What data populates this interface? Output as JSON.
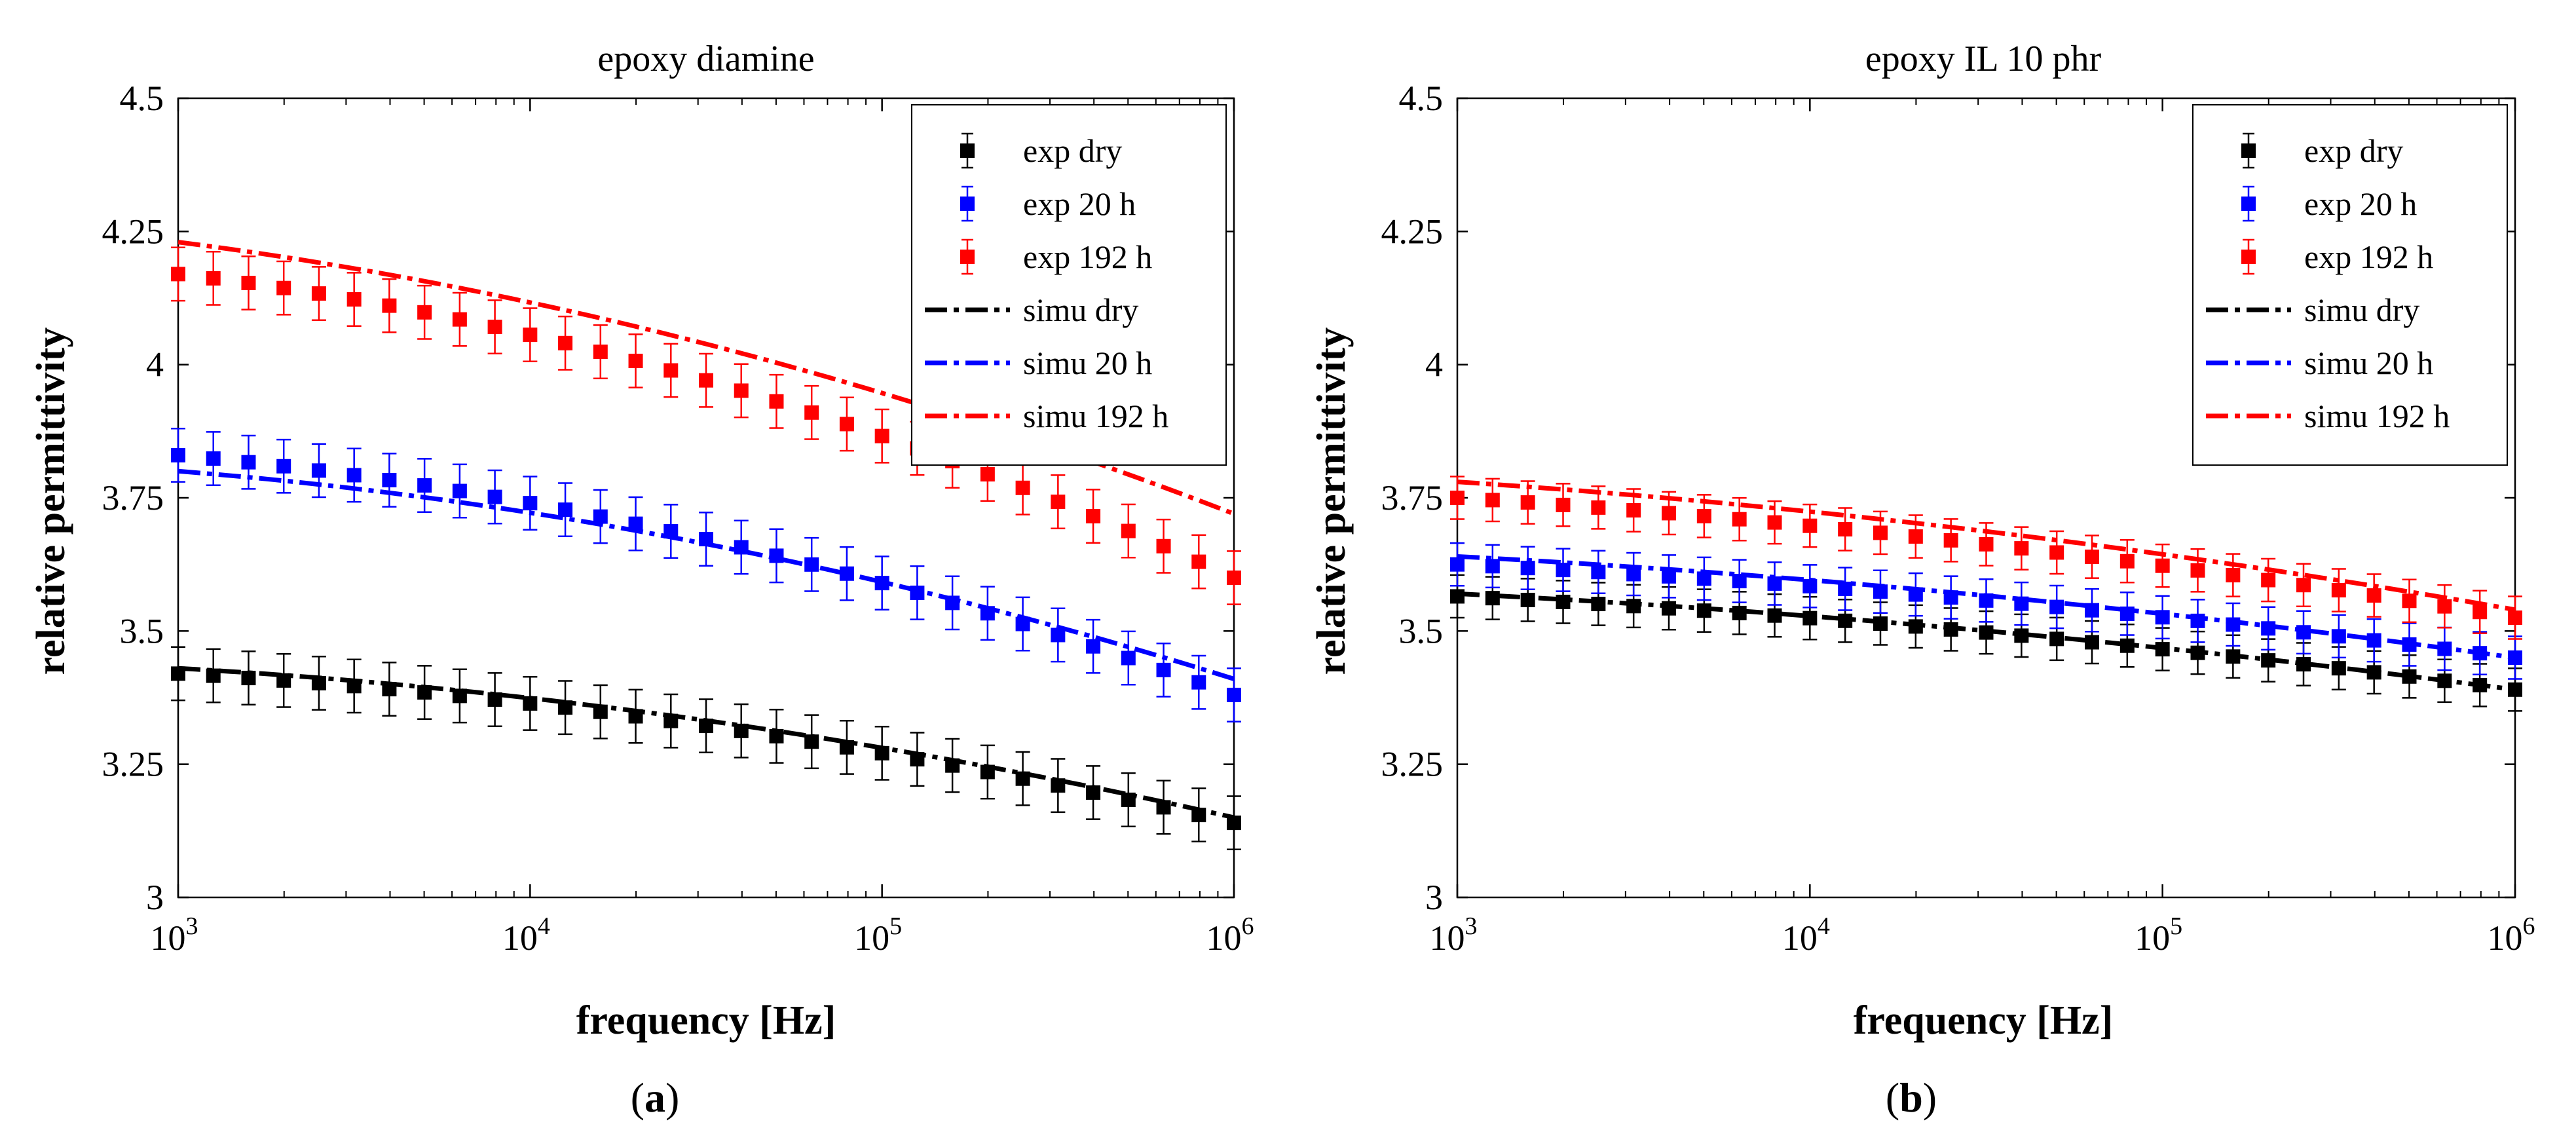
{
  "colors": {
    "dry": "#000000",
    "h20": "#0000ff",
    "h192": "#ff0000",
    "background": "#ffffff",
    "axis": "#000000"
  },
  "chart_data": [
    {
      "type": "line",
      "panel_label": {
        "open": "(",
        "letter": "a",
        "close": ")"
      },
      "title": "epoxy diamine",
      "xlabel": "frequency [Hz]",
      "ylabel": "relative permittivity",
      "xscale": "log",
      "xlim": [
        1000,
        1000000
      ],
      "ylim": [
        3,
        4.5
      ],
      "xticks": [
        {
          "base": "10",
          "exp": "3",
          "value": 1000
        },
        {
          "base": "10",
          "exp": "4",
          "value": 10000
        },
        {
          "base": "10",
          "exp": "5",
          "value": 100000
        },
        {
          "base": "10",
          "exp": "6",
          "value": 1000000
        }
      ],
      "yticks": [
        {
          "label": "3",
          "value": 3
        },
        {
          "label": "3.25",
          "value": 3.25
        },
        {
          "label": "3.5",
          "value": 3.5
        },
        {
          "label": "3.75",
          "value": 3.75
        },
        {
          "label": "4",
          "value": 4
        },
        {
          "label": "4.25",
          "value": 4.25
        },
        {
          "label": "4.5",
          "value": 4.5
        }
      ],
      "grid": false,
      "legend_position": "top-right",
      "experimental": [
        {
          "name": "exp dry",
          "color_key": "dry",
          "log_start": 3,
          "log_end": 6,
          "points": 31,
          "start": 3.42,
          "end": 3.14,
          "curvature": 0.6,
          "error": 0.05
        },
        {
          "name": "exp 20 h",
          "color_key": "h20",
          "log_start": 3,
          "log_end": 6,
          "points": 31,
          "start": 3.83,
          "end": 3.38,
          "curvature": 0.6,
          "error": 0.05
        },
        {
          "name": "exp 192 h",
          "color_key": "h192",
          "log_start": 3,
          "log_end": 6,
          "points": 31,
          "start": 4.17,
          "end": 3.6,
          "curvature": 0.6,
          "error": 0.05
        }
      ],
      "simulation": [
        {
          "name": "simu dry",
          "color_key": "dry",
          "log_start": 3,
          "log_end": 6,
          "start": 3.43,
          "end": 3.15,
          "curvature": 0.6
        },
        {
          "name": "simu 20 h",
          "color_key": "h20",
          "log_start": 3,
          "log_end": 6,
          "start": 3.8,
          "end": 3.41,
          "curvature": 0.6
        },
        {
          "name": "simu 192 h",
          "color_key": "h192",
          "log_start": 3,
          "log_end": 6,
          "start": 4.23,
          "end": 3.72,
          "curvature": 0.5
        }
      ]
    },
    {
      "type": "line",
      "panel_label": {
        "open": "(",
        "letter": "b",
        "close": ")"
      },
      "title": "epoxy IL 10 phr",
      "xlabel": "frequency [Hz]",
      "ylabel": "relative permittivity",
      "xscale": "log",
      "xlim": [
        1000,
        1000000
      ],
      "ylim": [
        3,
        4.5
      ],
      "xticks": [
        {
          "base": "10",
          "exp": "3",
          "value": 1000
        },
        {
          "base": "10",
          "exp": "4",
          "value": 10000
        },
        {
          "base": "10",
          "exp": "5",
          "value": 100000
        },
        {
          "base": "10",
          "exp": "6",
          "value": 1000000
        }
      ],
      "yticks": [
        {
          "label": "3",
          "value": 3
        },
        {
          "label": "3.25",
          "value": 3.25
        },
        {
          "label": "3.5",
          "value": 3.5
        },
        {
          "label": "3.75",
          "value": 3.75
        },
        {
          "label": "4",
          "value": 4
        },
        {
          "label": "4.25",
          "value": 4.25
        },
        {
          "label": "4.5",
          "value": 4.5
        }
      ],
      "grid": false,
      "legend_position": "top-right",
      "experimental": [
        {
          "name": "exp dry",
          "color_key": "dry",
          "log_start": 3,
          "log_end": 6,
          "points": 31,
          "start": 3.565,
          "end": 3.39,
          "curvature": 0.45,
          "error": 0.04
        },
        {
          "name": "exp 20 h",
          "color_key": "h20",
          "log_start": 3,
          "log_end": 6,
          "points": 31,
          "start": 3.625,
          "end": 3.45,
          "curvature": 0.45,
          "error": 0.04
        },
        {
          "name": "exp 192 h",
          "color_key": "h192",
          "log_start": 3,
          "log_end": 6,
          "points": 31,
          "start": 3.75,
          "end": 3.525,
          "curvature": 0.45,
          "error": 0.04
        }
      ],
      "simulation": [
        {
          "name": "simu dry",
          "color_key": "dry",
          "log_start": 3,
          "log_end": 6,
          "start": 3.57,
          "end": 3.39,
          "curvature": 0.45
        },
        {
          "name": "simu 20 h",
          "color_key": "h20",
          "log_start": 3,
          "log_end": 6,
          "start": 3.64,
          "end": 3.45,
          "curvature": 0.45
        },
        {
          "name": "simu 192 h",
          "color_key": "h192",
          "log_start": 3,
          "log_end": 6,
          "start": 3.78,
          "end": 3.54,
          "curvature": 0.45
        }
      ]
    }
  ]
}
